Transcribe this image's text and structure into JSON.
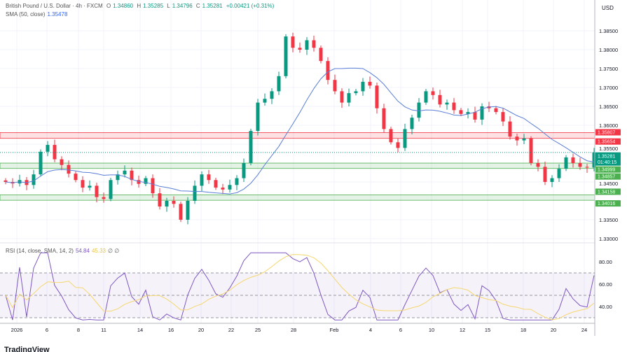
{
  "header": {
    "symbol": "British Pound / U.S. Dollar · 4h · FXCM",
    "open_label": "O",
    "open": "1.34860",
    "high_label": "H",
    "high": "1.35285",
    "low_label": "L",
    "low": "1.34796",
    "close_label": "C",
    "close": "1.35281",
    "change": "+0.00421 (+0.31%)",
    "sma_label": "SMA (50, close)",
    "sma_value": "1.35478"
  },
  "rsi_header": {
    "label": "RSI (14, close, SMA, 14, 2)",
    "rsi_value": "54.84",
    "sma_value": "45.33",
    "icons": "∅ ∅"
  },
  "currency": "USD",
  "countdown": "01:40:15",
  "logo": "TradingView",
  "colors": {
    "up": "#089981",
    "down": "#f23645",
    "sma": "#5b7fd6",
    "rsi": "#7e57c2",
    "rsi_sma": "#f5d76e",
    "zone_red": "#f23645",
    "zone_green": "#4caf50"
  },
  "chart_data": [
    {
      "type": "candlestick",
      "ylim": [
        1.33,
        1.3875
      ],
      "y_ticks": [
        "1.38500",
        "1.38000",
        "1.37500",
        "1.37000",
        "1.36500",
        "1.36000",
        "1.35500",
        "1.34500",
        "1.33500",
        "1.33000"
      ],
      "x_ticks": [
        "2026",
        "6",
        "8",
        "11",
        "14",
        "16",
        "20",
        "22",
        "25",
        "28",
        "Feb",
        "4",
        "6",
        "10",
        "12",
        "15",
        "18",
        "20",
        "24"
      ],
      "closes": [
        1.345,
        1.3446,
        1.3455,
        1.3442,
        1.347,
        1.353,
        1.3548,
        1.351,
        1.3495,
        1.3472,
        1.3455,
        1.3435,
        1.344,
        1.341,
        1.3405,
        1.3455,
        1.347,
        1.348,
        1.3455,
        1.3445,
        1.346,
        1.342,
        1.3385,
        1.34,
        1.3392,
        1.335,
        1.34,
        1.344,
        1.347,
        1.3455,
        1.3435,
        1.343,
        1.3442,
        1.346,
        1.35,
        1.3585,
        1.366,
        1.367,
        1.369,
        1.373,
        1.3835,
        1.3805,
        1.38,
        1.3825,
        1.3805,
        1.377,
        1.372,
        1.369,
        1.366,
        1.3685,
        1.369,
        1.3715,
        1.3705,
        1.3645,
        1.359,
        1.3555,
        1.354,
        1.359,
        1.362,
        1.366,
        1.369,
        1.368,
        1.3655,
        1.366,
        1.364,
        1.363,
        1.3635,
        1.3615,
        1.365,
        1.3645,
        1.3635,
        1.361,
        1.357,
        1.356,
        1.3565,
        1.35,
        1.349,
        1.345,
        1.346,
        1.3485,
        1.3515,
        1.35,
        1.349,
        1.3488,
        1.3528
      ],
      "zones": [
        {
          "color": "red",
          "top": "1.35807",
          "bottom": "1.35654"
        },
        {
          "color": "green",
          "top": "1.34999",
          "bottom": "1.34857"
        },
        {
          "color": "green",
          "top": "1.34158",
          "bottom": "1.34016"
        }
      ],
      "last_price": "1.35281"
    },
    {
      "type": "line",
      "name": "RSI",
      "ylim": [
        25,
        90
      ],
      "y_ticks": [
        "80.00",
        "60.00",
        "40.00"
      ],
      "bands": [
        30,
        50,
        70
      ]
    }
  ]
}
